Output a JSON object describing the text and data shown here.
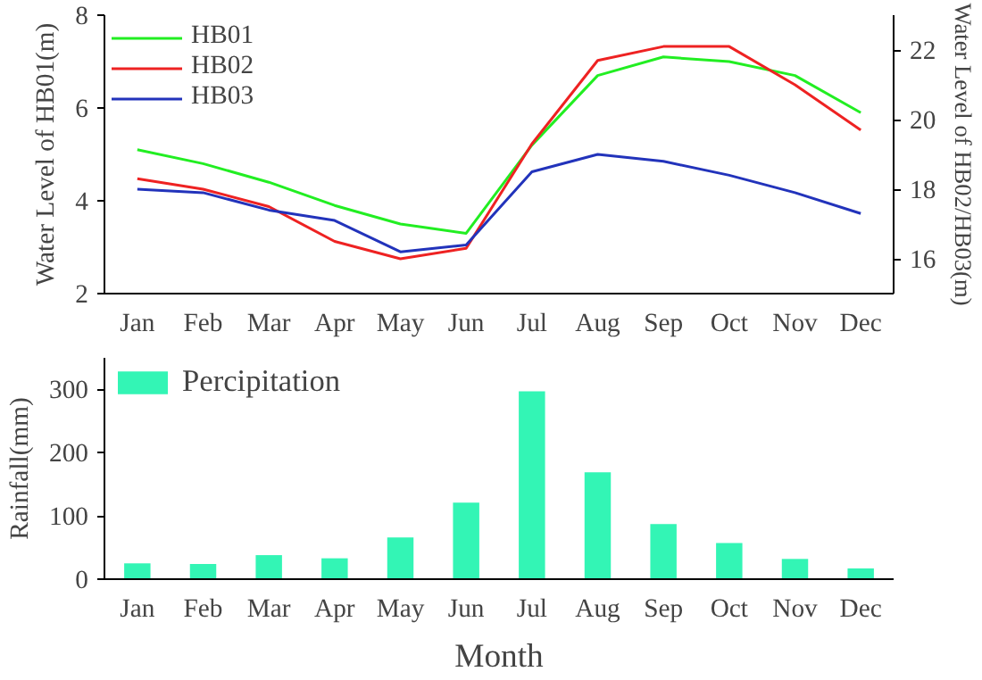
{
  "chart_data": [
    {
      "type": "line",
      "categories": [
        "Jan",
        "Feb",
        "Mar",
        "Apr",
        "May",
        "Jun",
        "Jul",
        "Aug",
        "Sep",
        "Oct",
        "Nov",
        "Dec"
      ],
      "ylabel": "Water Level of HB01(m)",
      "y2label": "Water Level of HB02/HB03(m)",
      "ylim": [
        2,
        8
      ],
      "yticks": [
        2,
        4,
        6,
        8
      ],
      "y2lim": [
        15,
        23
      ],
      "y2ticks": [
        16,
        18,
        20,
        22
      ],
      "legend": "top left",
      "grid": false,
      "marker": "none",
      "line_style": "solid",
      "series": [
        {
          "name": "HB01",
          "color": "#22ee22",
          "values": [
            5.1,
            4.8,
            4.4,
            3.9,
            3.5,
            3.3,
            5.2,
            6.7,
            7.1,
            7.0,
            6.7,
            5.9
          ]
        },
        {
          "name": "HB02",
          "color": "#ee2222",
          "axis": "y2",
          "values": [
            18.3,
            18.0,
            17.5,
            16.5,
            16.0,
            16.3,
            19.3,
            21.7,
            22.1,
            22.1,
            21.0,
            19.7
          ]
        },
        {
          "name": "HB03",
          "color": "#2233bb",
          "axis": "y2",
          "values": [
            18.0,
            17.9,
            17.4,
            17.1,
            16.2,
            16.4,
            18.5,
            19.0,
            18.8,
            18.4,
            17.9,
            17.3
          ]
        }
      ]
    },
    {
      "type": "bar",
      "categories": [
        "Jan",
        "Feb",
        "Mar",
        "Apr",
        "May",
        "Jun",
        "Jul",
        "Aug",
        "Sep",
        "Oct",
        "Nov",
        "Dec"
      ],
      "xlabel": "Month",
      "ylabel": "Rainfall(mm)",
      "ylim": [
        0,
        350
      ],
      "yticks": [
        0,
        100,
        200,
        300
      ],
      "legend": "top left",
      "grid": false,
      "series": [
        {
          "name": "Percipitation",
          "color": "#33f5b5",
          "values": [
            25,
            24,
            38,
            33,
            66,
            121,
            297,
            169,
            87,
            57,
            32,
            17
          ]
        }
      ]
    }
  ]
}
